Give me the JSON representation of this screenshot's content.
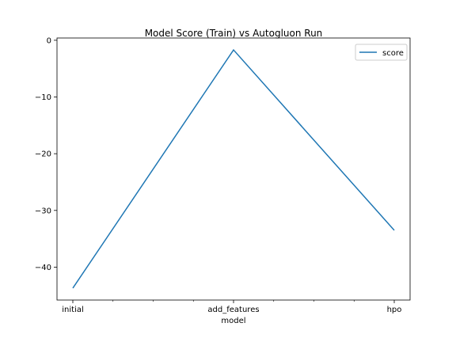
{
  "chart_data": {
    "type": "line",
    "title": "Model Score (Train) vs Autogluon Run",
    "xlabel": "model",
    "ylabel": "",
    "categories": [
      "initial",
      "add_features",
      "hpo"
    ],
    "series": [
      {
        "name": "score",
        "values": [
          -43.7,
          -1.7,
          -33.5
        ],
        "color": "#1f77b4"
      }
    ],
    "ylim": [
      -45.8,
      0.4
    ],
    "yticks": [
      0,
      -10,
      -20,
      -30,
      -40
    ],
    "ytick_labels": [
      "0",
      "−10",
      "−20",
      "−30",
      "−40"
    ],
    "xtick_labels": [
      "initial",
      "add_features",
      "hpo"
    ],
    "grid": false,
    "legend_position": "top-right"
  }
}
